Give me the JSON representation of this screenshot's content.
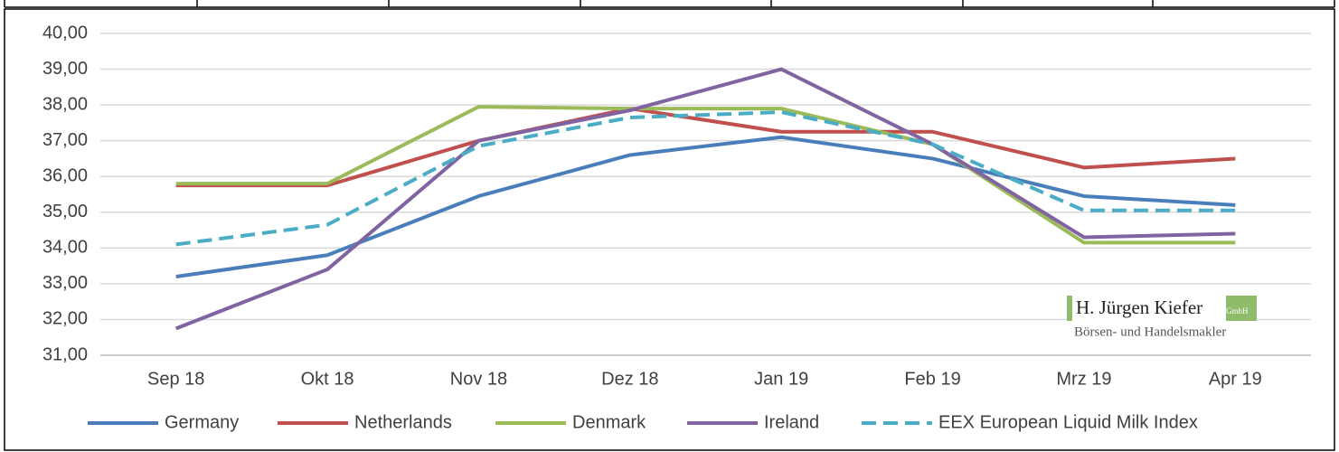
{
  "chart_data": {
    "type": "line",
    "categories": [
      "Sep 18",
      "Okt 18",
      "Nov 18",
      "Dez 18",
      "Jan 19",
      "Feb 19",
      "Mrz 19",
      "Apr 19"
    ],
    "series": [
      {
        "name": "Germany",
        "color": "#4a7ebb",
        "values": [
          33.2,
          33.8,
          35.45,
          36.6,
          37.1,
          36.5,
          35.45,
          35.2
        ]
      },
      {
        "name": "Netherlands",
        "color": "#c0504d",
        "values": [
          35.75,
          35.75,
          37.0,
          37.9,
          37.25,
          37.25,
          36.25,
          36.5
        ]
      },
      {
        "name": "Denmark",
        "color": "#9bbb59",
        "values": [
          35.8,
          35.8,
          37.95,
          37.9,
          37.9,
          36.9,
          34.15,
          34.15
        ]
      },
      {
        "name": "Ireland",
        "color": "#8064a2",
        "values": [
          31.75,
          33.4,
          37.0,
          37.85,
          39.0,
          36.9,
          34.3,
          34.4
        ]
      },
      {
        "name": "EEX European Liquid Milk Index",
        "color": "#4bacc6",
        "dashed": true,
        "values": [
          34.1,
          34.65,
          36.85,
          37.65,
          37.8,
          36.9,
          35.05,
          35.05
        ]
      }
    ],
    "ylim": [
      31,
      40
    ],
    "yticks": [
      {
        "value": 31,
        "label": "31,00"
      },
      {
        "value": 32,
        "label": "32,00"
      },
      {
        "value": 33,
        "label": "33,00"
      },
      {
        "value": 34,
        "label": "34,00"
      },
      {
        "value": 35,
        "label": "35,00"
      },
      {
        "value": 36,
        "label": "36,00"
      },
      {
        "value": 37,
        "label": "37,00"
      },
      {
        "value": 38,
        "label": "38,00"
      },
      {
        "value": 39,
        "label": "39,00"
      },
      {
        "value": 40,
        "label": "40,00"
      }
    ],
    "grid": true,
    "legend": "bottom",
    "logo": {
      "name": "H. Jürgen Kiefer",
      "suffix": "GmbH",
      "tagline": "Börsen- und Handelsmakler"
    }
  }
}
